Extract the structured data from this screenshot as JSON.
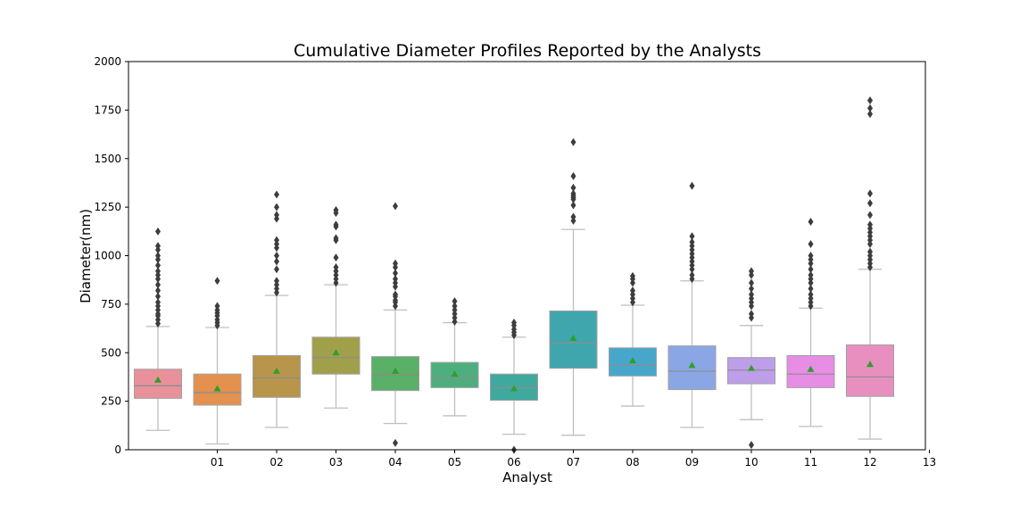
{
  "chart_data": {
    "type": "box",
    "title": "Cumulative Diameter Profiles Reported by the Analysts",
    "xlabel": "Analyst",
    "ylabel": "Diameter(nm)",
    "ylim": [
      0,
      2000
    ],
    "yticks": [
      0,
      250,
      500,
      750,
      1000,
      1250,
      1500,
      1750,
      2000
    ],
    "xtick_labels": [
      "01",
      "02",
      "03",
      "04",
      "05",
      "06",
      "07",
      "08",
      "09",
      "10",
      "11",
      "12",
      "13"
    ],
    "grid": false,
    "legend": "none",
    "mean_marker_color": "#2ca02c",
    "series": [
      {
        "color": "#e8919a",
        "whisker_low": 100,
        "q1": 265,
        "median": 330,
        "q3": 415,
        "whisker_high": 635,
        "mean": 360,
        "outliers": [
          650,
          670,
          690,
          700,
          720,
          740,
          760,
          790,
          820,
          850,
          880,
          900,
          920,
          950,
          980,
          1000,
          1030,
          1050,
          1125
        ]
      },
      {
        "color": "#e4914f",
        "whisker_low": 30,
        "q1": 230,
        "median": 295,
        "q3": 390,
        "whisker_high": 630,
        "mean": 315,
        "outliers": [
          640,
          655,
          670,
          690,
          705,
          720,
          740,
          870
        ]
      },
      {
        "color": "#b8954a",
        "whisker_low": 115,
        "q1": 270,
        "median": 370,
        "q3": 485,
        "whisker_high": 795,
        "mean": 405,
        "outliers": [
          810,
          830,
          850,
          870,
          930,
          970,
          1000,
          1040,
          1060,
          1080,
          1190,
          1210,
          1250,
          1315
        ]
      },
      {
        "color": "#a1a04a",
        "whisker_low": 215,
        "q1": 390,
        "median": 475,
        "q3": 580,
        "whisker_high": 850,
        "mean": 500,
        "outliers": [
          860,
          880,
          900,
          920,
          940,
          990,
          1080,
          1090,
          1150,
          1160,
          1220,
          1235
        ]
      },
      {
        "color": "#59b066",
        "whisker_low": 135,
        "q1": 305,
        "median": 385,
        "q3": 480,
        "whisker_high": 720,
        "mean": 405,
        "outliers": [
          35,
          740,
          760,
          770,
          790,
          800,
          840,
          860,
          880,
          910,
          940,
          960,
          1255
        ]
      },
      {
        "color": "#4daf7d",
        "whisker_low": 175,
        "q1": 320,
        "median": 370,
        "q3": 450,
        "whisker_high": 655,
        "mean": 390,
        "outliers": [
          660,
          680,
          700,
          720,
          740,
          765
        ]
      },
      {
        "color": "#3fa99e",
        "whisker_low": 80,
        "q1": 255,
        "median": 320,
        "q3": 390,
        "whisker_high": 580,
        "mean": 315,
        "outliers": [
          0,
          590,
          605,
          620,
          640,
          655
        ]
      },
      {
        "color": "#3fa6ae",
        "whisker_low": 75,
        "q1": 420,
        "median": 550,
        "q3": 715,
        "whisker_high": 1135,
        "mean": 575,
        "outliers": [
          1180,
          1200,
          1260,
          1290,
          1300,
          1310,
          1320,
          1350,
          1410,
          1585
        ]
      },
      {
        "color": "#47a7cb",
        "whisker_low": 225,
        "q1": 380,
        "median": 435,
        "q3": 525,
        "whisker_high": 745,
        "mean": 460,
        "outliers": [
          760,
          780,
          800,
          820,
          860,
          880,
          895
        ]
      },
      {
        "color": "#8ba6e4",
        "whisker_low": 115,
        "q1": 310,
        "median": 405,
        "q3": 535,
        "whisker_high": 870,
        "mean": 435,
        "outliers": [
          880,
          900,
          930,
          950,
          970,
          990,
          1010,
          1030,
          1050,
          1070,
          1100,
          1360
        ]
      },
      {
        "color": "#bd9ee8",
        "whisker_low": 155,
        "q1": 340,
        "median": 410,
        "q3": 475,
        "whisker_high": 640,
        "mean": 420,
        "outliers": [
          25,
          680,
          700,
          740,
          760,
          780,
          800,
          830,
          860,
          900,
          920
        ]
      },
      {
        "color": "#e78de6",
        "whisker_low": 120,
        "q1": 320,
        "median": 390,
        "q3": 485,
        "whisker_high": 730,
        "mean": 415,
        "outliers": [
          740,
          760,
          780,
          800,
          830,
          860,
          880,
          900,
          930,
          960,
          980,
          1000,
          1060,
          1175
        ]
      },
      {
        "color": "#e98fc0",
        "whisker_low": 55,
        "q1": 275,
        "median": 375,
        "q3": 540,
        "whisker_high": 930,
        "mean": 440,
        "outliers": [
          940,
          960,
          980,
          1000,
          1020,
          1060,
          1080,
          1100,
          1120,
          1140,
          1160,
          1210,
          1270,
          1320,
          1730,
          1760,
          1800
        ]
      }
    ]
  }
}
